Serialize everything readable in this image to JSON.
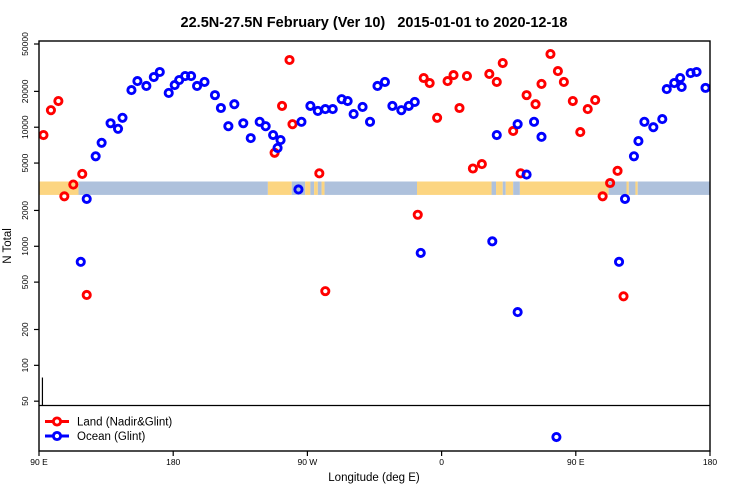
{
  "chart_data": {
    "type": "scatter",
    "title": "22.5N-27.5N February (Ver 10)   2015-01-01 to 2020-12-18",
    "xlabel": "Longitude (deg E)",
    "ylabel": "N Total",
    "x_axis": {
      "range": [
        90,
        540
      ],
      "note": "longitude increases eastward from 90E, wrapping through 180, 90W, 0, 90E to 180",
      "ticks": [
        {
          "value": 90,
          "label": "90 E"
        },
        {
          "value": 180,
          "label": "180"
        },
        {
          "value": 270,
          "label": "90 W"
        },
        {
          "value": 360,
          "label": "0"
        },
        {
          "value": 450,
          "label": "90 E"
        },
        {
          "value": 540,
          "label": "180"
        }
      ]
    },
    "y_axis": {
      "scale": "log",
      "range": [
        19,
        53000
      ],
      "ticks": [
        {
          "value": 50,
          "label": "50"
        },
        {
          "value": 100,
          "label": "100"
        },
        {
          "value": 200,
          "label": "200"
        },
        {
          "value": 500,
          "label": "500"
        },
        {
          "value": 1000,
          "label": "1000"
        },
        {
          "value": 2000,
          "label": "2000"
        },
        {
          "value": 5000,
          "label": "5000"
        },
        {
          "value": 10000,
          "label": "10000"
        },
        {
          "value": 20000,
          "label": "20000"
        },
        {
          "value": 50000,
          "label": "50000"
        }
      ]
    },
    "series": [
      {
        "name": "Land (Nadir&Glint)",
        "color": "#FF0000",
        "points": [
          [
            93,
            8600
          ],
          [
            98,
            13900
          ],
          [
            103,
            16600
          ],
          [
            107,
            2630
          ],
          [
            113,
            3300
          ],
          [
            119,
            4050
          ],
          [
            122,
            390
          ],
          [
            248,
            6100
          ],
          [
            253,
            15100
          ],
          [
            258,
            36700
          ],
          [
            260,
            10600
          ],
          [
            278,
            4100
          ],
          [
            282,
            420
          ],
          [
            344,
            1840
          ],
          [
            348,
            25900
          ],
          [
            352,
            23500
          ],
          [
            357,
            12000
          ],
          [
            364,
            24400
          ],
          [
            368,
            27400
          ],
          [
            372,
            14500
          ],
          [
            377,
            26900
          ],
          [
            381,
            4500
          ],
          [
            387,
            4900
          ],
          [
            392,
            28000
          ],
          [
            397,
            24000
          ],
          [
            401,
            34600
          ],
          [
            408,
            9300
          ],
          [
            413,
            4100
          ],
          [
            417,
            18600
          ],
          [
            423,
            15600
          ],
          [
            427,
            23100
          ],
          [
            433,
            41200
          ],
          [
            438,
            29600
          ],
          [
            442,
            24000
          ],
          [
            448,
            16600
          ],
          [
            453,
            9100
          ],
          [
            458,
            14200
          ],
          [
            463,
            16900
          ],
          [
            468,
            2630
          ],
          [
            473,
            3400
          ],
          [
            478,
            4300
          ],
          [
            482,
            380
          ]
        ]
      },
      {
        "name": "Ocean (Glint)",
        "color": "#0000FF",
        "points": [
          [
            118,
            740
          ],
          [
            122,
            2500
          ],
          [
            128,
            5700
          ],
          [
            132,
            7400
          ],
          [
            138,
            10800
          ],
          [
            143,
            9700
          ],
          [
            146,
            12000
          ],
          [
            152,
            20500
          ],
          [
            156,
            24400
          ],
          [
            162,
            22200
          ],
          [
            167,
            26400
          ],
          [
            171,
            29100
          ],
          [
            177,
            19400
          ],
          [
            181,
            22600
          ],
          [
            184,
            24900
          ],
          [
            188,
            26900
          ],
          [
            192,
            26900
          ],
          [
            196,
            22200
          ],
          [
            201,
            24000
          ],
          [
            208,
            18600
          ],
          [
            212,
            14500
          ],
          [
            217,
            10200
          ],
          [
            221,
            15600
          ],
          [
            227,
            10800
          ],
          [
            232,
            8100
          ],
          [
            238,
            11100
          ],
          [
            242,
            10200
          ],
          [
            247,
            8600
          ],
          [
            250,
            6700
          ],
          [
            252,
            7800
          ],
          [
            264,
            3000
          ],
          [
            266,
            11100
          ],
          [
            272,
            15100
          ],
          [
            277,
            13700
          ],
          [
            282,
            14200
          ],
          [
            287,
            14200
          ],
          [
            293,
            17200
          ],
          [
            297,
            16600
          ],
          [
            301,
            12900
          ],
          [
            307,
            14800
          ],
          [
            312,
            11100
          ],
          [
            317,
            22200
          ],
          [
            322,
            24000
          ],
          [
            327,
            15100
          ],
          [
            333,
            13900
          ],
          [
            338,
            15100
          ],
          [
            342,
            16300
          ],
          [
            346,
            880
          ],
          [
            394,
            1100
          ],
          [
            397,
            8600
          ],
          [
            411,
            10600
          ],
          [
            411,
            280
          ],
          [
            417,
            4000
          ],
          [
            422,
            11100
          ],
          [
            427,
            8300
          ],
          [
            437,
            25
          ],
          [
            479,
            740
          ],
          [
            483,
            2500
          ],
          [
            489,
            5700
          ],
          [
            492,
            7650
          ],
          [
            496,
            11100
          ],
          [
            502,
            10000
          ],
          [
            508,
            11700
          ],
          [
            511,
            20900
          ],
          [
            516,
            23500
          ],
          [
            520,
            25900
          ],
          [
            521,
            21800
          ],
          [
            527,
            28500
          ],
          [
            531,
            29100
          ],
          [
            537,
            21400
          ]
        ]
      }
    ],
    "surface_strip": {
      "description": "land/ocean map band drawn across the plot",
      "n_top": 3500,
      "n_bottom": 2700,
      "land_color": "#FCD581",
      "ocean_color": "#AEC1DC",
      "segments": [
        {
          "from": 90,
          "to": 116.5,
          "surface": "land"
        },
        {
          "from": 116.5,
          "to": 243.5,
          "surface": "ocean"
        },
        {
          "from": 243.5,
          "to": 259.5,
          "surface": "land"
        },
        {
          "from": 259.5,
          "to": 268.5,
          "surface": "ocean"
        },
        {
          "from": 268.5,
          "to": 272,
          "surface": "land"
        },
        {
          "from": 272,
          "to": 274.5,
          "surface": "ocean"
        },
        {
          "from": 274.5,
          "to": 277,
          "surface": "land"
        },
        {
          "from": 277,
          "to": 279.5,
          "surface": "ocean"
        },
        {
          "from": 279.5,
          "to": 281.5,
          "surface": "land"
        },
        {
          "from": 281.5,
          "to": 343.5,
          "surface": "ocean"
        },
        {
          "from": 343.5,
          "to": 393.5,
          "surface": "land"
        },
        {
          "from": 393.5,
          "to": 396.5,
          "surface": "ocean"
        },
        {
          "from": 396.5,
          "to": 401,
          "surface": "land"
        },
        {
          "from": 401,
          "to": 403,
          "surface": "ocean"
        },
        {
          "from": 403,
          "to": 408,
          "surface": "land"
        },
        {
          "from": 408,
          "to": 412.5,
          "surface": "ocean"
        },
        {
          "from": 412.5,
          "to": 472,
          "surface": "land"
        },
        {
          "from": 472,
          "to": 484,
          "surface": "ocean"
        },
        {
          "from": 484,
          "to": 485.5,
          "surface": "land"
        },
        {
          "from": 485.5,
          "to": 490,
          "surface": "ocean"
        },
        {
          "from": 490,
          "to": 491.5,
          "surface": "land"
        },
        {
          "from": 491.5,
          "to": 540,
          "surface": "ocean"
        }
      ]
    },
    "ref_lines": [
      {
        "type": "hline",
        "n": 46,
        "from_lon": 90,
        "to_lon": 540
      },
      {
        "type": "vline",
        "lon": 92.3,
        "n_from": 46,
        "n_to": 79
      }
    ],
    "legend": {
      "position": "bottom-left",
      "items": [
        {
          "label": "Land (Nadir&Glint)",
          "color": "#FF0000"
        },
        {
          "label": "Ocean (Glint)",
          "color": "#0000FF"
        }
      ]
    },
    "grid": false
  }
}
